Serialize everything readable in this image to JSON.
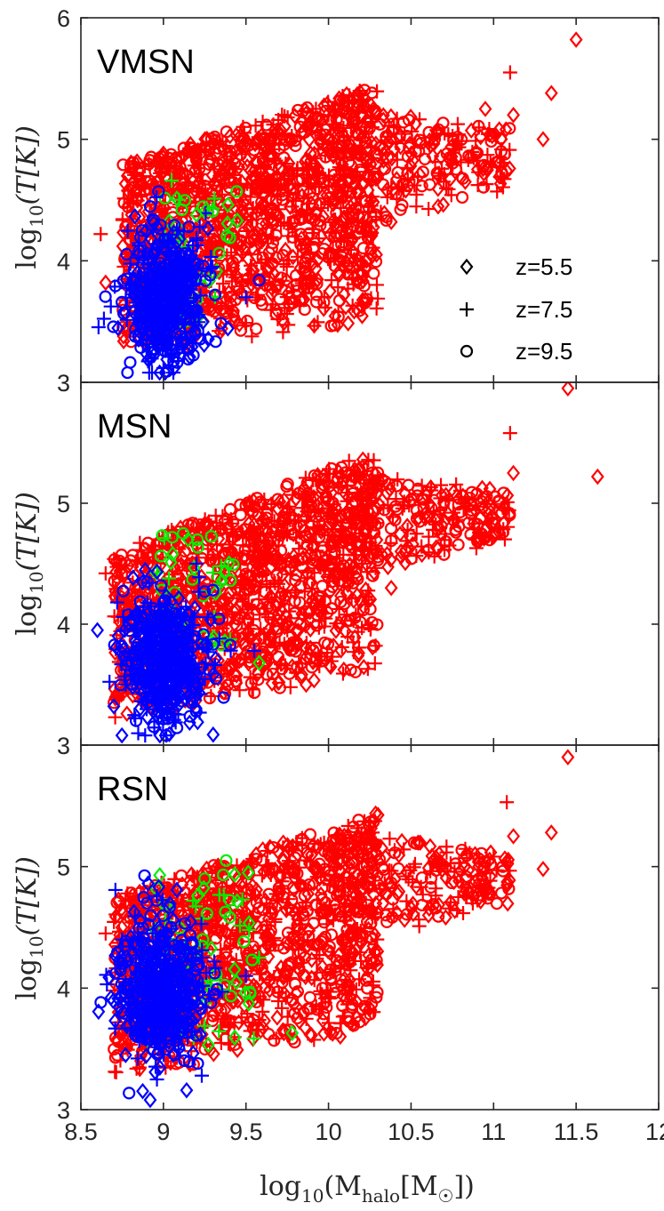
{
  "chart_data": [
    {
      "type": "scatter",
      "panel_label": "VMSN",
      "xlim": [
        8.5,
        12
      ],
      "ylim": [
        3,
        6
      ],
      "xticks": [
        "8.5",
        "9",
        "9.5",
        "10",
        "10.5",
        "11",
        "11.5",
        "12"
      ],
      "yticks": [
        "3",
        "4",
        "5",
        "6"
      ],
      "ylabel": "log10(T[K])",
      "clusters": [
        {
          "color": "#ff0000",
          "n": 1400,
          "seed": 11,
          "mode": "band",
          "x": [
            8.75,
            10.3
          ],
          "y_low": [
            3.25,
            3.5
          ],
          "y_high": [
            4.8,
            5.45
          ]
        },
        {
          "color": "#ff0000",
          "n": 260,
          "seed": 12,
          "mode": "band",
          "x": [
            10.0,
            11.1
          ],
          "y_low": [
            4.15,
            4.6
          ],
          "y_high": [
            5.3,
            5.1
          ]
        },
        {
          "color": "#00ee00",
          "n": 45,
          "seed": 13,
          "mode": "rect",
          "x": [
            8.95,
            9.45
          ],
          "y": [
            3.45,
            4.6
          ]
        },
        {
          "color": "#0000ff",
          "n": 540,
          "seed": 14,
          "mode": "gauss",
          "cx": 9.0,
          "cy": 3.7,
          "sx": 0.13,
          "sy": 0.27
        }
      ],
      "points": [
        {
          "x": 11.5,
          "y": 5.82,
          "m": "diamond",
          "color": "#ff0000"
        },
        {
          "x": 11.1,
          "y": 5.55,
          "m": "plus",
          "color": "#ff0000"
        },
        {
          "x": 11.35,
          "y": 5.38,
          "m": "diamond",
          "color": "#ff0000"
        },
        {
          "x": 10.95,
          "y": 5.25,
          "m": "diamond",
          "color": "#ff0000"
        },
        {
          "x": 11.12,
          "y": 5.2,
          "m": "diamond",
          "color": "#ff0000"
        },
        {
          "x": 11.3,
          "y": 5.0,
          "m": "diamond",
          "color": "#ff0000"
        },
        {
          "x": 10.38,
          "y": 4.32,
          "m": "diamond",
          "color": "#ff0000"
        },
        {
          "x": 9.78,
          "y": 3.65,
          "m": "diamond",
          "color": "#ff0000"
        },
        {
          "x": 8.62,
          "y": 4.22,
          "m": "plus",
          "color": "#ff0000"
        },
        {
          "x": 8.65,
          "y": 3.82,
          "m": "diamond",
          "color": "#ff0000"
        },
        {
          "x": 9.05,
          "y": 4.66,
          "m": "plus",
          "color": "#00ee00"
        },
        {
          "x": 9.3,
          "y": 4.43,
          "m": "plus",
          "color": "#00ee00"
        },
        {
          "x": 9.2,
          "y": 4.38,
          "m": "diamond",
          "color": "#00ee00"
        },
        {
          "x": 9.58,
          "y": 3.84,
          "m": "circle",
          "color": "#0000ff"
        },
        {
          "x": 9.5,
          "y": 3.7,
          "m": "plus",
          "color": "#0000ff"
        },
        {
          "x": 8.97,
          "y": 4.57,
          "m": "circle",
          "color": "#0000ff"
        },
        {
          "x": 9.22,
          "y": 4.28,
          "m": "plus",
          "color": "#0000ff"
        }
      ]
    },
    {
      "type": "scatter",
      "panel_label": "MSN",
      "xlim": [
        8.5,
        12
      ],
      "ylim": [
        3,
        6
      ],
      "xticks": [
        "8.5",
        "9",
        "9.5",
        "10",
        "10.5",
        "11",
        "11.5",
        "12"
      ],
      "yticks": [
        "3",
        "4",
        "5",
        "6"
      ],
      "ylabel": "log10(T[K])",
      "clusters": [
        {
          "color": "#ff0000",
          "n": 1300,
          "seed": 21,
          "mode": "band",
          "x": [
            8.7,
            10.3
          ],
          "y_low": [
            3.2,
            3.6
          ],
          "y_high": [
            4.6,
            5.45
          ]
        },
        {
          "color": "#ff0000",
          "n": 260,
          "seed": 22,
          "mode": "band",
          "x": [
            10.0,
            11.1
          ],
          "y_low": [
            4.3,
            4.7
          ],
          "y_high": [
            5.3,
            5.1
          ]
        },
        {
          "color": "#00ee00",
          "n": 40,
          "seed": 23,
          "mode": "rect",
          "x": [
            8.95,
            9.45
          ],
          "y": [
            3.65,
            4.75
          ]
        },
        {
          "color": "#0000ff",
          "n": 520,
          "seed": 24,
          "mode": "gauss",
          "cx": 9.0,
          "cy": 3.7,
          "sx": 0.13,
          "sy": 0.27
        }
      ],
      "points": [
        {
          "x": 11.45,
          "y": 5.95,
          "m": "diamond",
          "color": "#ff0000"
        },
        {
          "x": 11.1,
          "y": 5.58,
          "m": "plus",
          "color": "#ff0000"
        },
        {
          "x": 11.63,
          "y": 5.22,
          "m": "diamond",
          "color": "#ff0000"
        },
        {
          "x": 10.97,
          "y": 4.95,
          "m": "diamond",
          "color": "#ff0000"
        },
        {
          "x": 11.12,
          "y": 5.25,
          "m": "diamond",
          "color": "#ff0000"
        },
        {
          "x": 10.38,
          "y": 4.3,
          "m": "diamond",
          "color": "#ff0000"
        },
        {
          "x": 9.78,
          "y": 3.65,
          "m": "diamond",
          "color": "#ff0000"
        },
        {
          "x": 8.65,
          "y": 4.42,
          "m": "plus",
          "color": "#ff0000"
        },
        {
          "x": 9.15,
          "y": 4.7,
          "m": "diamond",
          "color": "#00ee00"
        },
        {
          "x": 9.12,
          "y": 4.75,
          "m": "circle",
          "color": "#00ee00"
        },
        {
          "x": 9.35,
          "y": 4.48,
          "m": "plus",
          "color": "#00ee00"
        },
        {
          "x": 9.58,
          "y": 3.68,
          "m": "diamond",
          "color": "#00ee00"
        },
        {
          "x": 9.2,
          "y": 4.5,
          "m": "plus",
          "color": "#0000ff"
        },
        {
          "x": 9.55,
          "y": 3.78,
          "m": "plus",
          "color": "#0000ff"
        },
        {
          "x": 8.6,
          "y": 3.95,
          "m": "diamond",
          "color": "#0000ff"
        },
        {
          "x": 8.72,
          "y": 4.18,
          "m": "plus",
          "color": "#0000ff"
        },
        {
          "x": 9.25,
          "y": 4.27,
          "m": "circle",
          "color": "#0000ff"
        }
      ]
    },
    {
      "type": "scatter",
      "panel_label": "RSN",
      "xlim": [
        8.5,
        12
      ],
      "ylim": [
        3,
        6
      ],
      "xticks": [
        "8.5",
        "9",
        "9.5",
        "10",
        "10.5",
        "11",
        "11.5",
        "12"
      ],
      "yticks": [
        "3",
        "4",
        "5",
        "6"
      ],
      "ylabel": "log10(T[K])",
      "xlabel": "log10(Mhalo[M☉])",
      "clusters": [
        {
          "color": "#ff0000",
          "n": 1300,
          "seed": 31,
          "mode": "band",
          "x": [
            8.7,
            10.3
          ],
          "y_low": [
            3.25,
            3.65
          ],
          "y_high": [
            4.75,
            5.45
          ]
        },
        {
          "color": "#ff0000",
          "n": 250,
          "seed": 32,
          "mode": "band",
          "x": [
            10.0,
            11.1
          ],
          "y_low": [
            4.3,
            4.7
          ],
          "y_high": [
            5.3,
            5.1
          ]
        },
        {
          "color": "#00ee00",
          "n": 70,
          "seed": 33,
          "mode": "rect",
          "x": [
            8.85,
            9.55
          ],
          "y": [
            3.5,
            4.95
          ]
        },
        {
          "color": "#0000ff",
          "n": 560,
          "seed": 34,
          "mode": "gauss",
          "cx": 8.98,
          "cy": 3.95,
          "sx": 0.13,
          "sy": 0.3
        }
      ],
      "points": [
        {
          "x": 11.45,
          "y": 5.9,
          "m": "diamond",
          "color": "#ff0000"
        },
        {
          "x": 11.08,
          "y": 5.53,
          "m": "plus",
          "color": "#ff0000"
        },
        {
          "x": 11.35,
          "y": 5.28,
          "m": "diamond",
          "color": "#ff0000"
        },
        {
          "x": 11.3,
          "y": 4.98,
          "m": "diamond",
          "color": "#ff0000"
        },
        {
          "x": 10.98,
          "y": 4.92,
          "m": "diamond",
          "color": "#ff0000"
        },
        {
          "x": 11.12,
          "y": 5.25,
          "m": "diamond",
          "color": "#ff0000"
        },
        {
          "x": 8.65,
          "y": 4.45,
          "m": "plus",
          "color": "#ff0000"
        },
        {
          "x": 9.78,
          "y": 3.63,
          "m": "diamond",
          "color": "#00ee00"
        },
        {
          "x": 9.38,
          "y": 5.05,
          "m": "circle",
          "color": "#00ee00"
        },
        {
          "x": 9.25,
          "y": 4.9,
          "m": "circle",
          "color": "#00ee00"
        },
        {
          "x": 9.58,
          "y": 4.25,
          "m": "plus",
          "color": "#00ee00"
        },
        {
          "x": 8.75,
          "y": 4.4,
          "m": "plus",
          "color": "#0000ff"
        },
        {
          "x": 9.5,
          "y": 4.1,
          "m": "plus",
          "color": "#0000ff"
        },
        {
          "x": 8.92,
          "y": 3.08,
          "m": "diamond",
          "color": "#0000ff"
        },
        {
          "x": 8.9,
          "y": 4.7,
          "m": "circle",
          "color": "#0000ff"
        }
      ]
    }
  ],
  "legend": {
    "location": "lower-right of top panel",
    "entries": [
      {
        "marker": "diamond",
        "label": "z=5.5"
      },
      {
        "marker": "plus",
        "label": "z=7.5"
      },
      {
        "marker": "circle",
        "label": "z=9.5"
      }
    ]
  },
  "colors": {
    "red": "#ff0000",
    "green": "#00ee00",
    "blue": "#0000ff",
    "axes": "#262626"
  },
  "axis_labels": {
    "y_prefix": "log",
    "y_sub": "10",
    "y_body": "(T[K])",
    "x_prefix": "log",
    "x_sub": "10",
    "x_body_1": "(M",
    "x_body_sub": "halo",
    "x_body_2": "[M",
    "x_body_sun": "☉",
    "x_body_3": "])"
  }
}
